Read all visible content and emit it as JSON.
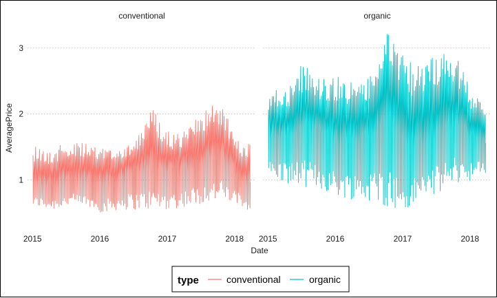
{
  "chart_data": {
    "type": "line",
    "facets": [
      "conventional",
      "organic"
    ],
    "xlabel": "Date",
    "ylabel": "AveragePrice",
    "x_ticks": [
      "2015",
      "2016",
      "2017",
      "2018"
    ],
    "y_ticks": [
      1,
      2,
      3
    ],
    "ylim": [
      0.35,
      3.3
    ],
    "xlim": [
      "2015-01-04",
      "2018-03-25"
    ],
    "grid": "dotted horizontal major lines",
    "legend": {
      "title": "type",
      "position": "bottom",
      "entries": [
        {
          "label": "conventional",
          "color": "#F8766D"
        },
        {
          "label": "organic",
          "color": "#00BFC4"
        }
      ]
    },
    "series": [
      {
        "name": "conventional",
        "color": "#F8766D",
        "x": [
          "2015-01",
          "2015-04",
          "2015-07",
          "2015-10",
          "2016-01",
          "2016-04",
          "2016-07",
          "2016-10",
          "2017-01",
          "2017-04",
          "2017-07",
          "2017-10",
          "2018-01",
          "2018-03"
        ],
        "median": [
          0.95,
          0.95,
          1.05,
          1.0,
          0.95,
          1.05,
          1.15,
          1.25,
          1.15,
          1.2,
          1.3,
          1.4,
          1.1,
          1.0
        ],
        "max": [
          1.55,
          1.45,
          1.6,
          1.55,
          1.5,
          1.5,
          1.65,
          2.1,
          1.7,
          1.75,
          2.05,
          2.2,
          1.6,
          1.55
        ],
        "min": [
          0.6,
          0.55,
          0.6,
          0.6,
          0.5,
          0.55,
          0.55,
          0.55,
          0.55,
          0.6,
          0.65,
          0.7,
          0.6,
          0.55
        ]
      },
      {
        "name": "organic",
        "color": "#00BFC4",
        "x": [
          "2015-01",
          "2015-04",
          "2015-07",
          "2015-10",
          "2016-01",
          "2016-04",
          "2016-07",
          "2016-10",
          "2017-01",
          "2017-04",
          "2017-07",
          "2017-10",
          "2018-01",
          "2018-03"
        ],
        "median": [
          1.7,
          1.7,
          1.8,
          1.75,
          1.6,
          1.65,
          1.75,
          2.0,
          1.55,
          1.6,
          1.75,
          1.9,
          1.65,
          1.6
        ],
        "max": [
          2.35,
          2.4,
          2.8,
          2.55,
          2.6,
          2.45,
          2.6,
          3.25,
          2.85,
          2.7,
          3.0,
          2.95,
          2.3,
          2.2
        ],
        "min": [
          1.0,
          0.95,
          0.9,
          0.85,
          0.75,
          0.7,
          0.65,
          0.6,
          0.45,
          0.75,
          0.8,
          0.95,
          1.0,
          1.05
        ]
      }
    ]
  }
}
